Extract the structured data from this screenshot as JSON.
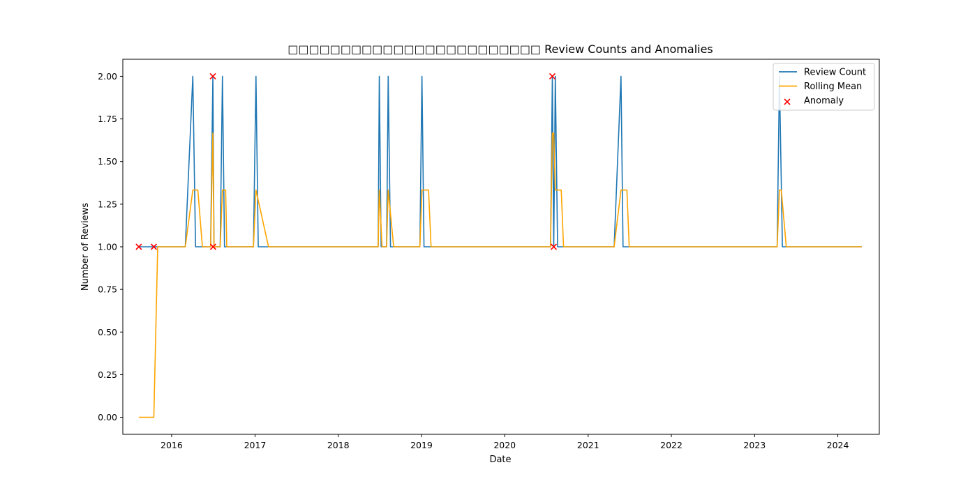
{
  "chart_data": {
    "type": "line",
    "title": "□□□□□□□□□□□□□□□□□□□□□□□□ Review Counts and Anomalies",
    "xlabel": "Date",
    "ylabel": "Number of Reviews",
    "xlim": [
      "2015-06-01",
      "2024-07-01"
    ],
    "ylim": [
      -0.1,
      2.1
    ],
    "x_ticks": [
      "2016",
      "2017",
      "2018",
      "2019",
      "2020",
      "2021",
      "2022",
      "2023",
      "2024"
    ],
    "y_ticks": [
      "0.00",
      "0.25",
      "0.50",
      "0.75",
      "1.00",
      "1.25",
      "1.50",
      "1.75",
      "2.00"
    ],
    "grid": false,
    "legend_position": "top-right",
    "series": [
      {
        "name": "Review Count",
        "kind": "line",
        "color": "#1f77b4",
        "points": [
          [
            "2015-08-10",
            1
          ],
          [
            "2015-10-15",
            1
          ],
          [
            "2015-11-15",
            1
          ],
          [
            "2016-03-01",
            1
          ],
          [
            "2016-04-03",
            2
          ],
          [
            "2016-04-15",
            1
          ],
          [
            "2016-06-20",
            1
          ],
          [
            "2016-06-30",
            2
          ],
          [
            "2016-07-05",
            1
          ],
          [
            "2016-08-01",
            1
          ],
          [
            "2016-08-11",
            2
          ],
          [
            "2016-08-20",
            1
          ],
          [
            "2016-12-25",
            1
          ],
          [
            "2017-01-05",
            2
          ],
          [
            "2017-01-15",
            1
          ],
          [
            "2018-06-25",
            1
          ],
          [
            "2018-06-30",
            2
          ],
          [
            "2018-07-08",
            1
          ],
          [
            "2018-08-01",
            1
          ],
          [
            "2018-08-08",
            2
          ],
          [
            "2018-08-18",
            1
          ],
          [
            "2018-12-25",
            1
          ],
          [
            "2019-01-03",
            2
          ],
          [
            "2019-01-12",
            1
          ],
          [
            "2020-07-20",
            1
          ],
          [
            "2020-07-28",
            2
          ],
          [
            "2020-08-03",
            1
          ],
          [
            "2020-08-10",
            2
          ],
          [
            "2020-08-20",
            1
          ],
          [
            "2021-04-25",
            1
          ],
          [
            "2021-05-25",
            2
          ],
          [
            "2021-06-03",
            1
          ],
          [
            "2023-04-10",
            1
          ],
          [
            "2023-04-20",
            2
          ],
          [
            "2023-05-03",
            1
          ],
          [
            "2024-04-15",
            1
          ]
        ]
      },
      {
        "name": "Rolling Mean",
        "kind": "line",
        "color": "#ffa500",
        "points": [
          [
            "2015-08-10",
            0
          ],
          [
            "2015-10-15",
            0
          ],
          [
            "2015-11-01",
            1
          ],
          [
            "2016-03-01",
            1
          ],
          [
            "2016-04-03",
            1.333
          ],
          [
            "2016-04-25",
            1.333
          ],
          [
            "2016-05-15",
            1
          ],
          [
            "2016-06-20",
            1
          ],
          [
            "2016-06-30",
            1.667
          ],
          [
            "2016-07-05",
            1
          ],
          [
            "2016-08-01",
            1
          ],
          [
            "2016-08-11",
            1.333
          ],
          [
            "2016-08-25",
            1.333
          ],
          [
            "2016-08-30",
            1
          ],
          [
            "2016-12-25",
            1
          ],
          [
            "2017-01-05",
            1.333
          ],
          [
            "2017-03-01",
            1
          ],
          [
            "2018-06-25",
            1
          ],
          [
            "2018-06-30",
            1.333
          ],
          [
            "2018-07-12",
            1
          ],
          [
            "2018-08-01",
            1
          ],
          [
            "2018-08-08",
            1.333
          ],
          [
            "2018-09-01",
            1
          ],
          [
            "2018-12-25",
            1
          ],
          [
            "2019-01-03",
            1.333
          ],
          [
            "2019-02-01",
            1.333
          ],
          [
            "2019-02-12",
            1
          ],
          [
            "2020-07-20",
            1
          ],
          [
            "2020-07-28",
            1.667
          ],
          [
            "2020-08-03",
            1.667
          ],
          [
            "2020-08-10",
            1.333
          ],
          [
            "2020-09-05",
            1.333
          ],
          [
            "2020-09-15",
            1
          ],
          [
            "2021-04-25",
            1
          ],
          [
            "2021-05-25",
            1.333
          ],
          [
            "2021-06-20",
            1.333
          ],
          [
            "2021-06-30",
            1
          ],
          [
            "2023-04-10",
            1
          ],
          [
            "2023-04-20",
            1.333
          ],
          [
            "2023-04-28",
            1.333
          ],
          [
            "2023-05-20",
            1
          ],
          [
            "2024-04-15",
            1
          ]
        ]
      },
      {
        "name": "Anomaly",
        "kind": "scatter",
        "marker": "x",
        "color": "#ff0000",
        "points": [
          [
            "2015-08-10",
            1
          ],
          [
            "2015-10-15",
            1
          ],
          [
            "2016-06-30",
            2
          ],
          [
            "2016-07-01",
            1
          ],
          [
            "2020-07-28",
            2
          ],
          [
            "2020-08-03",
            1
          ]
        ]
      }
    ]
  }
}
